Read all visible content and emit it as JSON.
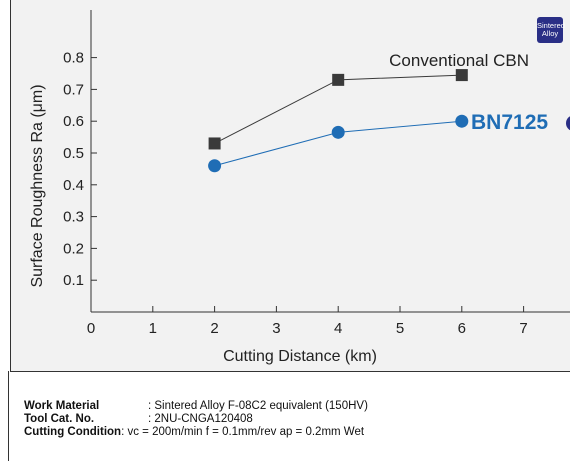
{
  "chart_data": {
    "type": "line",
    "xlabel": "Cutting Distance (km)",
    "ylabel": "Surface Roughness Ra (μm)",
    "xlim": [
      0,
      7
    ],
    "ylim": [
      0,
      0.9
    ],
    "x_ticks": [
      "0",
      "1",
      "2",
      "3",
      "4",
      "5",
      "6",
      "7"
    ],
    "y_ticks": [
      "0.1",
      "0.2",
      "0.3",
      "0.4",
      "0.5",
      "0.6",
      "0.7",
      "0.8"
    ],
    "series": [
      {
        "name": "Conventional CBN",
        "marker": "square",
        "color": "#3a3a3a",
        "x": [
          2,
          4,
          6
        ],
        "y": [
          0.53,
          0.73,
          0.745
        ]
      },
      {
        "name": "BN7125",
        "marker": "circle",
        "color": "#1f6db5",
        "x": [
          2,
          4,
          6
        ],
        "y": [
          0.46,
          0.565,
          0.6
        ]
      }
    ]
  },
  "badge": {
    "line1": "Sintered",
    "line2": "Alloy",
    "color": "#2a2f86"
  },
  "conditions": [
    {
      "label": "Work Material",
      "value": ": Sintered Alloy F-08C2 equivalent (150HV)"
    },
    {
      "label": "Tool Cat. No.",
      "value": ": 2NU-CNGA120408"
    },
    {
      "label": "Cutting Condition",
      "value": ": vc = 200m/min f = 0.1mm/rev ap = 0.2mm Wet"
    }
  ]
}
